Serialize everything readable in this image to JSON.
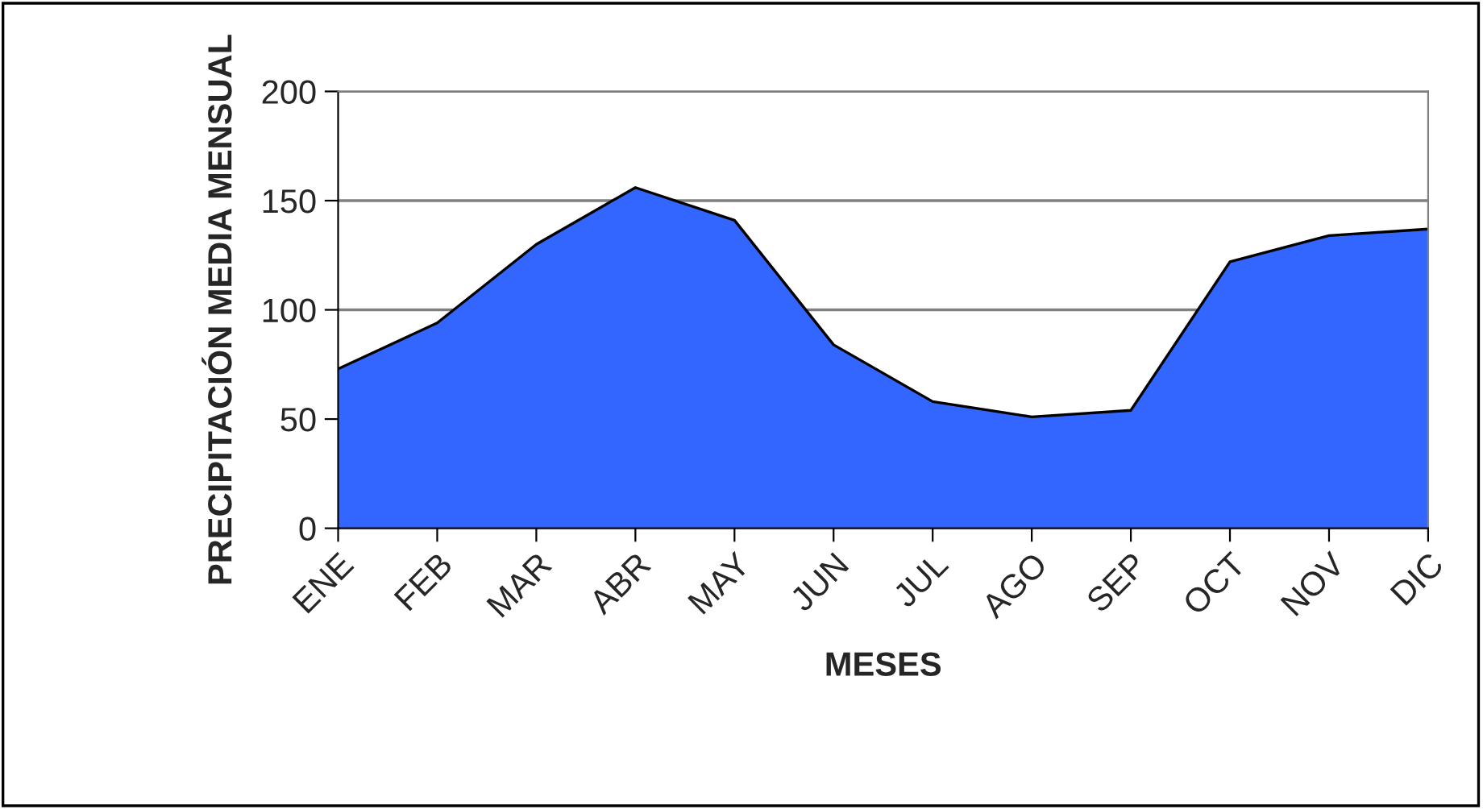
{
  "chart_data": {
    "type": "area",
    "xlabel": "MESES",
    "ylabel": "PRECIPITACIÓN MEDIA MENSUAL",
    "categories": [
      "ENE",
      "FEB",
      "MAR",
      "ABR",
      "MAY",
      "JUN",
      "JUL",
      "AGO",
      "SEP",
      "OCT",
      "NOV",
      "DIC"
    ],
    "series": [
      {
        "color": "#3366ff",
        "values": [
          73,
          94,
          130,
          156,
          141,
          84,
          58,
          51,
          54,
          122,
          134,
          137
        ]
      }
    ],
    "ylim": [
      0,
      200
    ],
    "yticks": [
      0,
      50,
      100,
      150,
      200
    ],
    "grid": "y",
    "legend": false
  }
}
